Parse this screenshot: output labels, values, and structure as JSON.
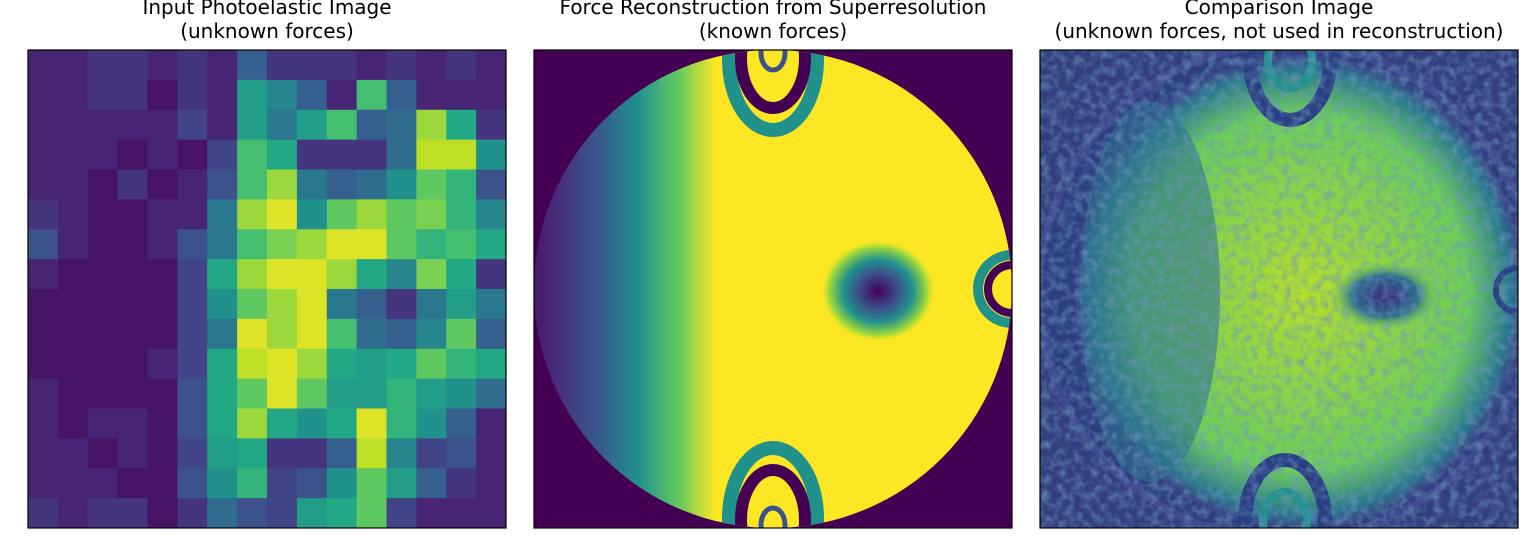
{
  "chart_data": [
    {
      "type": "heatmap",
      "colormap": "viridis",
      "title_lines": [
        "Input Photoelastic Image",
        "(unknown forces)"
      ],
      "values": [
        [
          0.1,
          0.1,
          0.15,
          0.15,
          0.1,
          0.15,
          0.1,
          0.3,
          0.15,
          0.15,
          0.15,
          0.1,
          0.15,
          0.1,
          0.15,
          0.1
        ],
        [
          0.1,
          0.1,
          0.15,
          0.15,
          0.05,
          0.15,
          0.1,
          0.55,
          0.45,
          0.3,
          0.1,
          0.7,
          0.3,
          0.1,
          0.1,
          0.1
        ],
        [
          0.1,
          0.1,
          0.1,
          0.1,
          0.1,
          0.2,
          0.1,
          0.55,
          0.4,
          0.55,
          0.7,
          0.3,
          0.35,
          0.85,
          0.6,
          0.15
        ],
        [
          0.1,
          0.1,
          0.1,
          0.05,
          0.1,
          0.05,
          0.2,
          0.7,
          0.6,
          0.15,
          0.15,
          0.15,
          0.35,
          0.9,
          0.9,
          0.5
        ],
        [
          0.1,
          0.1,
          0.05,
          0.15,
          0.05,
          0.1,
          0.25,
          0.7,
          0.85,
          0.4,
          0.3,
          0.35,
          0.5,
          0.75,
          0.65,
          0.25
        ],
        [
          0.15,
          0.1,
          0.05,
          0.05,
          0.1,
          0.1,
          0.4,
          0.85,
          0.95,
          0.5,
          0.75,
          0.85,
          0.75,
          0.8,
          0.65,
          0.45
        ],
        [
          0.25,
          0.1,
          0.05,
          0.05,
          0.1,
          0.25,
          0.4,
          0.7,
          0.8,
          0.85,
          0.95,
          0.95,
          0.75,
          0.65,
          0.7,
          0.6
        ],
        [
          0.1,
          0.05,
          0.05,
          0.05,
          0.05,
          0.2,
          0.6,
          0.85,
          0.95,
          0.95,
          0.85,
          0.6,
          0.45,
          0.8,
          0.6,
          0.15
        ],
        [
          0.05,
          0.05,
          0.05,
          0.05,
          0.05,
          0.2,
          0.5,
          0.75,
          0.85,
          0.95,
          0.4,
          0.3,
          0.15,
          0.4,
          0.55,
          0.4
        ],
        [
          0.05,
          0.05,
          0.05,
          0.05,
          0.05,
          0.2,
          0.4,
          0.95,
          0.85,
          0.95,
          0.7,
          0.35,
          0.3,
          0.45,
          0.75,
          0.3
        ],
        [
          0.05,
          0.05,
          0.05,
          0.05,
          0.1,
          0.2,
          0.6,
          0.9,
          0.95,
          0.85,
          0.6,
          0.55,
          0.6,
          0.75,
          0.65,
          0.6
        ],
        [
          0.1,
          0.05,
          0.05,
          0.05,
          0.05,
          0.25,
          0.6,
          0.75,
          0.95,
          0.75,
          0.55,
          0.55,
          0.65,
          0.55,
          0.5,
          0.35
        ],
        [
          0.1,
          0.05,
          0.1,
          0.1,
          0.05,
          0.25,
          0.6,
          0.85,
          0.6,
          0.5,
          0.6,
          0.95,
          0.65,
          0.5,
          0.3,
          0.1
        ],
        [
          0.1,
          0.1,
          0.05,
          0.1,
          0.05,
          0.2,
          0.55,
          0.6,
          0.15,
          0.15,
          0.3,
          0.9,
          0.45,
          0.2,
          0.25,
          0.1
        ],
        [
          0.1,
          0.1,
          0.1,
          0.05,
          0.05,
          0.25,
          0.5,
          0.65,
          0.2,
          0.25,
          0.5,
          0.75,
          0.55,
          0.3,
          0.15,
          0.1
        ],
        [
          0.15,
          0.1,
          0.15,
          0.15,
          0.05,
          0.15,
          0.35,
          0.25,
          0.2,
          0.55,
          0.6,
          0.75,
          0.2,
          0.1,
          0.1,
          0.1
        ]
      ]
    },
    {
      "type": "image",
      "title_lines": [
        "Force Reconstruction from Superresolution",
        "(known forces)"
      ]
    },
    {
      "type": "image",
      "title_lines": [
        "Comparison Image",
        "(unknown forces, not used in reconstruction)"
      ]
    }
  ]
}
